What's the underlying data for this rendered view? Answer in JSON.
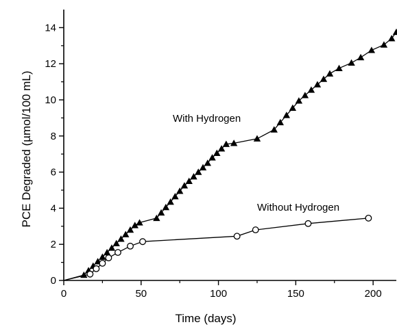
{
  "chart_data": {
    "type": "line",
    "title": "",
    "xlabel": "Time (days)",
    "ylabel": "PCE Degraded (µmol/100 mL)",
    "xlim": [
      0,
      215
    ],
    "ylim": [
      0,
      15
    ],
    "xticks": [
      0,
      50,
      100,
      150,
      200
    ],
    "yticks": [
      0,
      2,
      4,
      6,
      8,
      10,
      12,
      14
    ],
    "grid": false,
    "legend": "none",
    "series": [
      {
        "name": "With Hydrogen",
        "marker": "filled-triangle",
        "color": "#000000",
        "x": [
          0,
          13,
          16,
          19,
          22,
          25,
          28,
          31,
          34,
          37,
          40,
          43,
          46,
          49,
          60,
          63,
          66,
          69,
          72,
          75,
          78,
          81,
          84,
          87,
          90,
          93,
          96,
          99,
          102,
          105,
          110,
          125,
          136,
          140,
          144,
          148,
          152,
          156,
          160,
          164,
          168,
          172,
          178,
          186,
          192,
          199,
          207,
          212,
          215
        ],
        "y": [
          0,
          0.3,
          0.55,
          0.8,
          1.05,
          1.3,
          1.55,
          1.8,
          2.05,
          2.3,
          2.55,
          2.8,
          3.05,
          3.2,
          3.45,
          3.75,
          4.05,
          4.35,
          4.65,
          4.95,
          5.25,
          5.5,
          5.75,
          6.0,
          6.25,
          6.5,
          6.8,
          7.05,
          7.3,
          7.55,
          7.6,
          7.85,
          8.35,
          8.75,
          9.15,
          9.55,
          9.95,
          10.25,
          10.55,
          10.85,
          11.15,
          11.45,
          11.75,
          12.05,
          12.35,
          12.75,
          13.05,
          13.4,
          13.75
        ]
      },
      {
        "name": "Without Hydrogen",
        "marker": "open-circle",
        "color": "#000000",
        "x": [
          0,
          17,
          21,
          25,
          29,
          35,
          43,
          51,
          112,
          124,
          158,
          197
        ],
        "y": [
          0,
          0.35,
          0.65,
          0.95,
          1.25,
          1.55,
          1.9,
          2.15,
          2.45,
          2.8,
          3.15,
          3.45
        ]
      }
    ],
    "annotations": [
      {
        "text": "With Hydrogen",
        "series": "With Hydrogen"
      },
      {
        "text": "Without Hydrogen",
        "series": "Without Hydrogen"
      }
    ]
  }
}
